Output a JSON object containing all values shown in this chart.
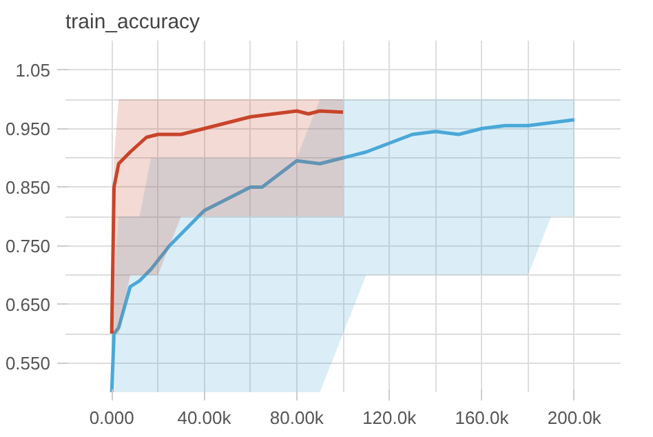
{
  "chart_data": {
    "type": "line",
    "title": "train_accuracy",
    "xlim": [
      -20000,
      220000
    ],
    "xticks": [
      {
        "value": 0,
        "label": "0.000"
      },
      {
        "value": 40000,
        "label": "40.00k"
      },
      {
        "value": 80000,
        "label": "80.00k"
      },
      {
        "value": 120000,
        "label": "120.0k"
      },
      {
        "value": 160000,
        "label": "160.0k"
      },
      {
        "value": 200000,
        "label": "200.0k"
      }
    ],
    "ylim": [
      0.5,
      1.1
    ],
    "yticks": [
      {
        "value": 0.55,
        "label": "0.550"
      },
      {
        "value": 0.65,
        "label": "0.650"
      },
      {
        "value": 0.75,
        "label": "0.750"
      },
      {
        "value": 0.85,
        "label": "0.850"
      },
      {
        "value": 0.95,
        "label": "0.950"
      },
      1.05
    ],
    "grid": true,
    "series": [
      {
        "color": "#4aa8d8",
        "x": [
          0,
          1000,
          3000,
          8000,
          12000,
          17000,
          25000,
          30000,
          40000,
          50000,
          60000,
          65000,
          75000,
          80000,
          90000,
          100000,
          110000,
          120000,
          130000,
          140000,
          150000,
          160000,
          170000,
          180000,
          190000,
          200000
        ],
        "values": [
          0.5,
          0.6,
          0.61,
          0.68,
          0.69,
          0.71,
          0.75,
          0.77,
          0.81,
          0.83,
          0.85,
          0.85,
          0.88,
          0.895,
          0.89,
          0.9,
          0.91,
          0.925,
          0.94,
          0.945,
          0.94,
          0.95,
          0.955,
          0.955,
          0.96,
          0.965
        ],
        "lower": [
          0.5,
          0.5,
          0.5,
          0.5,
          0.5,
          0.5,
          0.5,
          0.5,
          0.5,
          0.5,
          0.5,
          0.5,
          0.5,
          0.5,
          0.5,
          0.6,
          0.7,
          0.7,
          0.7,
          0.7,
          0.7,
          0.7,
          0.7,
          0.7,
          0.8,
          0.8
        ],
        "upper": [
          0.6,
          0.7,
          0.8,
          0.8,
          0.8,
          0.9,
          0.9,
          0.9,
          0.9,
          0.9,
          0.9,
          0.9,
          0.9,
          0.9,
          1.0,
          1.0,
          1.0,
          1.0,
          1.0,
          1.0,
          1.0,
          1.0,
          1.0,
          1.0,
          1.0,
          1.0
        ]
      },
      {
        "color": "#c8442a",
        "x": [
          0,
          1000,
          3000,
          8000,
          15000,
          20000,
          30000,
          40000,
          50000,
          60000,
          70000,
          80000,
          85000,
          90000,
          100000
        ],
        "values": [
          0.6,
          0.85,
          0.89,
          0.91,
          0.935,
          0.94,
          0.94,
          0.95,
          0.96,
          0.97,
          0.975,
          0.98,
          0.975,
          0.98,
          0.978
        ],
        "lower": [
          0.6,
          0.6,
          0.6,
          0.7,
          0.7,
          0.7,
          0.8,
          0.8,
          0.8,
          0.8,
          0.8,
          0.8,
          0.8,
          0.8,
          0.8
        ],
        "upper": [
          0.7,
          0.9,
          1.0,
          1.0,
          1.0,
          1.0,
          1.0,
          1.0,
          1.0,
          1.0,
          1.0,
          1.0,
          1.0,
          1.0,
          1.0
        ]
      }
    ]
  }
}
